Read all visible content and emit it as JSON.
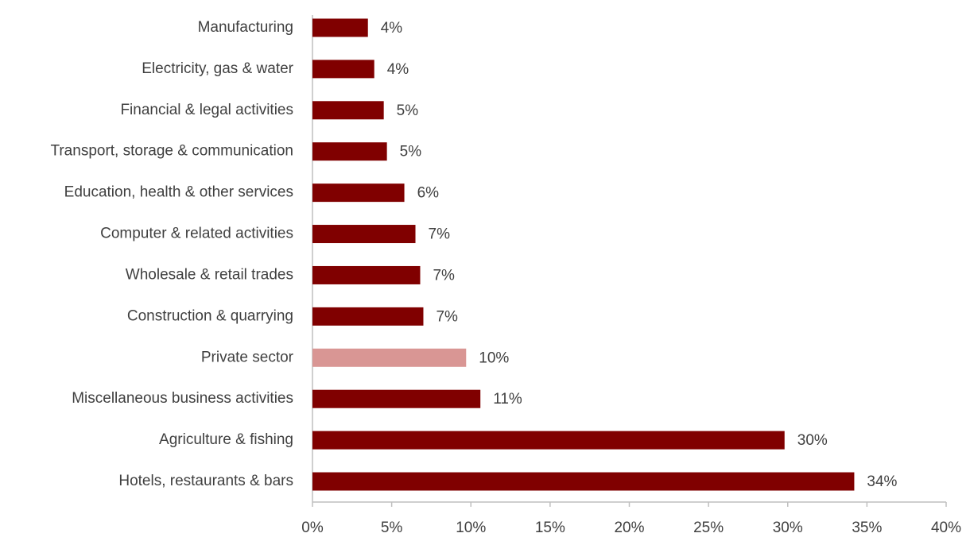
{
  "chart_data": {
    "type": "hbar",
    "categories": [
      "Manufacturing",
      "Electricity, gas & water",
      "Financial & legal activities",
      "Transport, storage & communication",
      "Education, health & other services",
      "Computer & related activities",
      "Wholesale & retail trades",
      "Construction & quarrying",
      "Private sector",
      "Miscellaneous business activities",
      "Agriculture & fishing",
      "Hotels, restaurants & bars"
    ],
    "values": [
      3.5,
      3.9,
      4.5,
      4.7,
      5.8,
      6.5,
      6.8,
      7.0,
      9.7,
      10.6,
      29.8,
      34.2
    ],
    "value_labels": [
      "4%",
      "4%",
      "5%",
      "5%",
      "6%",
      "7%",
      "7%",
      "7%",
      "10%",
      "11%",
      "30%",
      "34%"
    ],
    "colors": [
      "#800000",
      "#800000",
      "#800000",
      "#800000",
      "#800000",
      "#800000",
      "#800000",
      "#800000",
      "#d99694",
      "#800000",
      "#800000",
      "#800000"
    ],
    "xlim": [
      0,
      40
    ],
    "xticks": [
      {
        "value": 0,
        "label": "0%"
      },
      {
        "value": 5,
        "label": "5%"
      },
      {
        "value": 10,
        "label": "10%"
      },
      {
        "value": 15,
        "label": "15%"
      },
      {
        "value": 20,
        "label": "20%"
      },
      {
        "value": 25,
        "label": "25%"
      },
      {
        "value": 30,
        "label": "30%"
      },
      {
        "value": 35,
        "label": "35%"
      },
      {
        "value": 40,
        "label": "40%"
      }
    ],
    "grid": false
  }
}
